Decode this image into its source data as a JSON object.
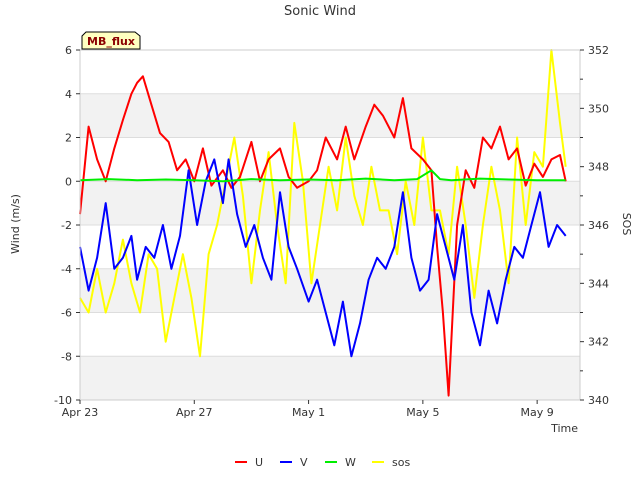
{
  "chart_data": {
    "type": "line",
    "title": "Sonic Wind",
    "badge": "MB_flux",
    "xlabel": "Time",
    "ylabel": "Wind (m/s)",
    "y2label": "SOS",
    "x_range_days": [
      0,
      17.5
    ],
    "xticks": [
      {
        "label": "Apr 23",
        "day": 0
      },
      {
        "label": "Apr 27",
        "day": 4
      },
      {
        "label": "May 1",
        "day": 8
      },
      {
        "label": "May 5",
        "day": 12
      },
      {
        "label": "May 9",
        "day": 16
      }
    ],
    "ylim": [
      -10,
      6
    ],
    "yticks": [
      -10,
      -8,
      -6,
      -4,
      -2,
      0,
      2,
      4,
      6
    ],
    "y2lim": [
      340,
      352
    ],
    "y2ticks": [
      340,
      342,
      344,
      346,
      348,
      350,
      352
    ],
    "grid": true,
    "legend_position": "bottom-center",
    "series": [
      {
        "name": "U",
        "axis": "left",
        "color": "#ff0000",
        "x": [
          0,
          0.3,
          0.6,
          0.9,
          1.2,
          1.5,
          1.8,
          2.0,
          2.2,
          2.5,
          2.8,
          3.1,
          3.4,
          3.7,
          4.0,
          4.3,
          4.6,
          5.0,
          5.3,
          5.6,
          6.0,
          6.3,
          6.6,
          7.0,
          7.3,
          7.6,
          8.0,
          8.3,
          8.6,
          9.0,
          9.3,
          9.6,
          10.0,
          10.3,
          10.6,
          11.0,
          11.3,
          11.6,
          12.0,
          12.3,
          12.5,
          12.7,
          12.9,
          13.2,
          13.5,
          13.8,
          14.1,
          14.4,
          14.7,
          15.0,
          15.3,
          15.6,
          15.9,
          16.2,
          16.5,
          16.8,
          17.0
        ],
        "values": [
          -1.5,
          2.5,
          1.0,
          0.0,
          1.5,
          2.8,
          4.0,
          4.5,
          4.8,
          3.5,
          2.2,
          1.8,
          0.5,
          1.0,
          0.0,
          1.5,
          -0.2,
          0.5,
          -0.3,
          0.2,
          1.8,
          0.0,
          1.0,
          1.5,
          0.2,
          -0.3,
          0.0,
          0.5,
          2.0,
          1.0,
          2.5,
          1.0,
          2.5,
          3.5,
          3.0,
          2.0,
          3.8,
          1.5,
          1.0,
          0.5,
          -3.0,
          -6.0,
          -9.8,
          -2.0,
          0.5,
          -0.3,
          2.0,
          1.5,
          2.5,
          1.0,
          1.5,
          -0.2,
          0.8,
          0.2,
          1.0,
          1.2,
          0.0
        ]
      },
      {
        "name": "V",
        "axis": "left",
        "color": "#0000ff",
        "x": [
          0,
          0.3,
          0.6,
          0.9,
          1.2,
          1.5,
          1.8,
          2.0,
          2.3,
          2.6,
          2.9,
          3.2,
          3.5,
          3.8,
          4.1,
          4.4,
          4.7,
          5.0,
          5.2,
          5.5,
          5.8,
          6.1,
          6.4,
          6.7,
          7.0,
          7.3,
          7.6,
          8.0,
          8.3,
          8.6,
          8.9,
          9.2,
          9.5,
          9.8,
          10.1,
          10.4,
          10.7,
          11.0,
          11.3,
          11.6,
          11.9,
          12.2,
          12.5,
          12.8,
          13.1,
          13.4,
          13.7,
          14.0,
          14.3,
          14.6,
          14.9,
          15.2,
          15.5,
          15.8,
          16.1,
          16.4,
          16.7,
          17.0
        ],
        "values": [
          -3.0,
          -5.0,
          -3.5,
          -1.0,
          -4.0,
          -3.5,
          -2.5,
          -4.5,
          -3.0,
          -3.5,
          -2.0,
          -4.0,
          -2.5,
          0.5,
          -2.0,
          0.0,
          1.0,
          -1.0,
          1.0,
          -1.5,
          -3.0,
          -2.0,
          -3.5,
          -4.5,
          -0.5,
          -3.0,
          -4.0,
          -5.5,
          -4.5,
          -6.0,
          -7.5,
          -5.5,
          -8.0,
          -6.5,
          -4.5,
          -3.5,
          -4.0,
          -3.0,
          -0.5,
          -3.5,
          -5.0,
          -4.5,
          -1.5,
          -3.0,
          -4.5,
          -2.0,
          -6.0,
          -7.5,
          -5.0,
          -6.5,
          -4.5,
          -3.0,
          -3.5,
          -2.0,
          -0.5,
          -3.0,
          -2.0,
          -2.5
        ]
      },
      {
        "name": "W",
        "axis": "left",
        "color": "#00ee00",
        "x": [
          0,
          1.0,
          2.0,
          3.0,
          4.0,
          5.0,
          6.0,
          7.0,
          8.0,
          9.0,
          10.0,
          11.0,
          11.8,
          12.3,
          12.6,
          13.0,
          14.0,
          15.0,
          16.0,
          17.0
        ],
        "values": [
          0.05,
          0.1,
          0.05,
          0.08,
          0.05,
          0.0,
          0.1,
          0.05,
          0.08,
          0.05,
          0.12,
          0.05,
          0.1,
          0.5,
          0.1,
          0.05,
          0.12,
          0.08,
          0.05,
          0.05
        ]
      },
      {
        "name": "sos",
        "axis": "right",
        "color": "#ffff00",
        "x": [
          0,
          0.3,
          0.6,
          0.9,
          1.2,
          1.5,
          1.8,
          2.1,
          2.4,
          2.7,
          3.0,
          3.3,
          3.6,
          3.9,
          4.2,
          4.5,
          4.8,
          5.1,
          5.4,
          5.7,
          6.0,
          6.3,
          6.6,
          6.9,
          7.2,
          7.5,
          7.8,
          8.1,
          8.4,
          8.7,
          9.0,
          9.3,
          9.6,
          9.9,
          10.2,
          10.5,
          10.8,
          11.1,
          11.4,
          11.7,
          12.0,
          12.3,
          12.6,
          12.9,
          13.2,
          13.5,
          13.8,
          14.1,
          14.4,
          14.7,
          15.0,
          15.3,
          15.6,
          15.9,
          16.2,
          16.5,
          16.8,
          17.0
        ],
        "values": [
          343.5,
          343.0,
          344.5,
          343.0,
          344.0,
          345.5,
          344.0,
          343.0,
          345.0,
          344.5,
          342.0,
          343.5,
          345.0,
          343.5,
          341.5,
          345.0,
          346.0,
          347.5,
          349.0,
          347.0,
          344.0,
          346.5,
          348.5,
          346.0,
          344.0,
          349.5,
          347.5,
          344.0,
          346.0,
          348.0,
          346.5,
          349.0,
          347.0,
          346.0,
          348.0,
          346.5,
          346.5,
          345.0,
          347.5,
          346.0,
          349.0,
          346.5,
          346.5,
          345.0,
          348.0,
          346.0,
          343.5,
          346.0,
          348.0,
          346.5,
          344.0,
          349.0,
          346.0,
          348.5,
          348.0,
          352.0,
          349.5,
          348.0
        ]
      }
    ]
  }
}
